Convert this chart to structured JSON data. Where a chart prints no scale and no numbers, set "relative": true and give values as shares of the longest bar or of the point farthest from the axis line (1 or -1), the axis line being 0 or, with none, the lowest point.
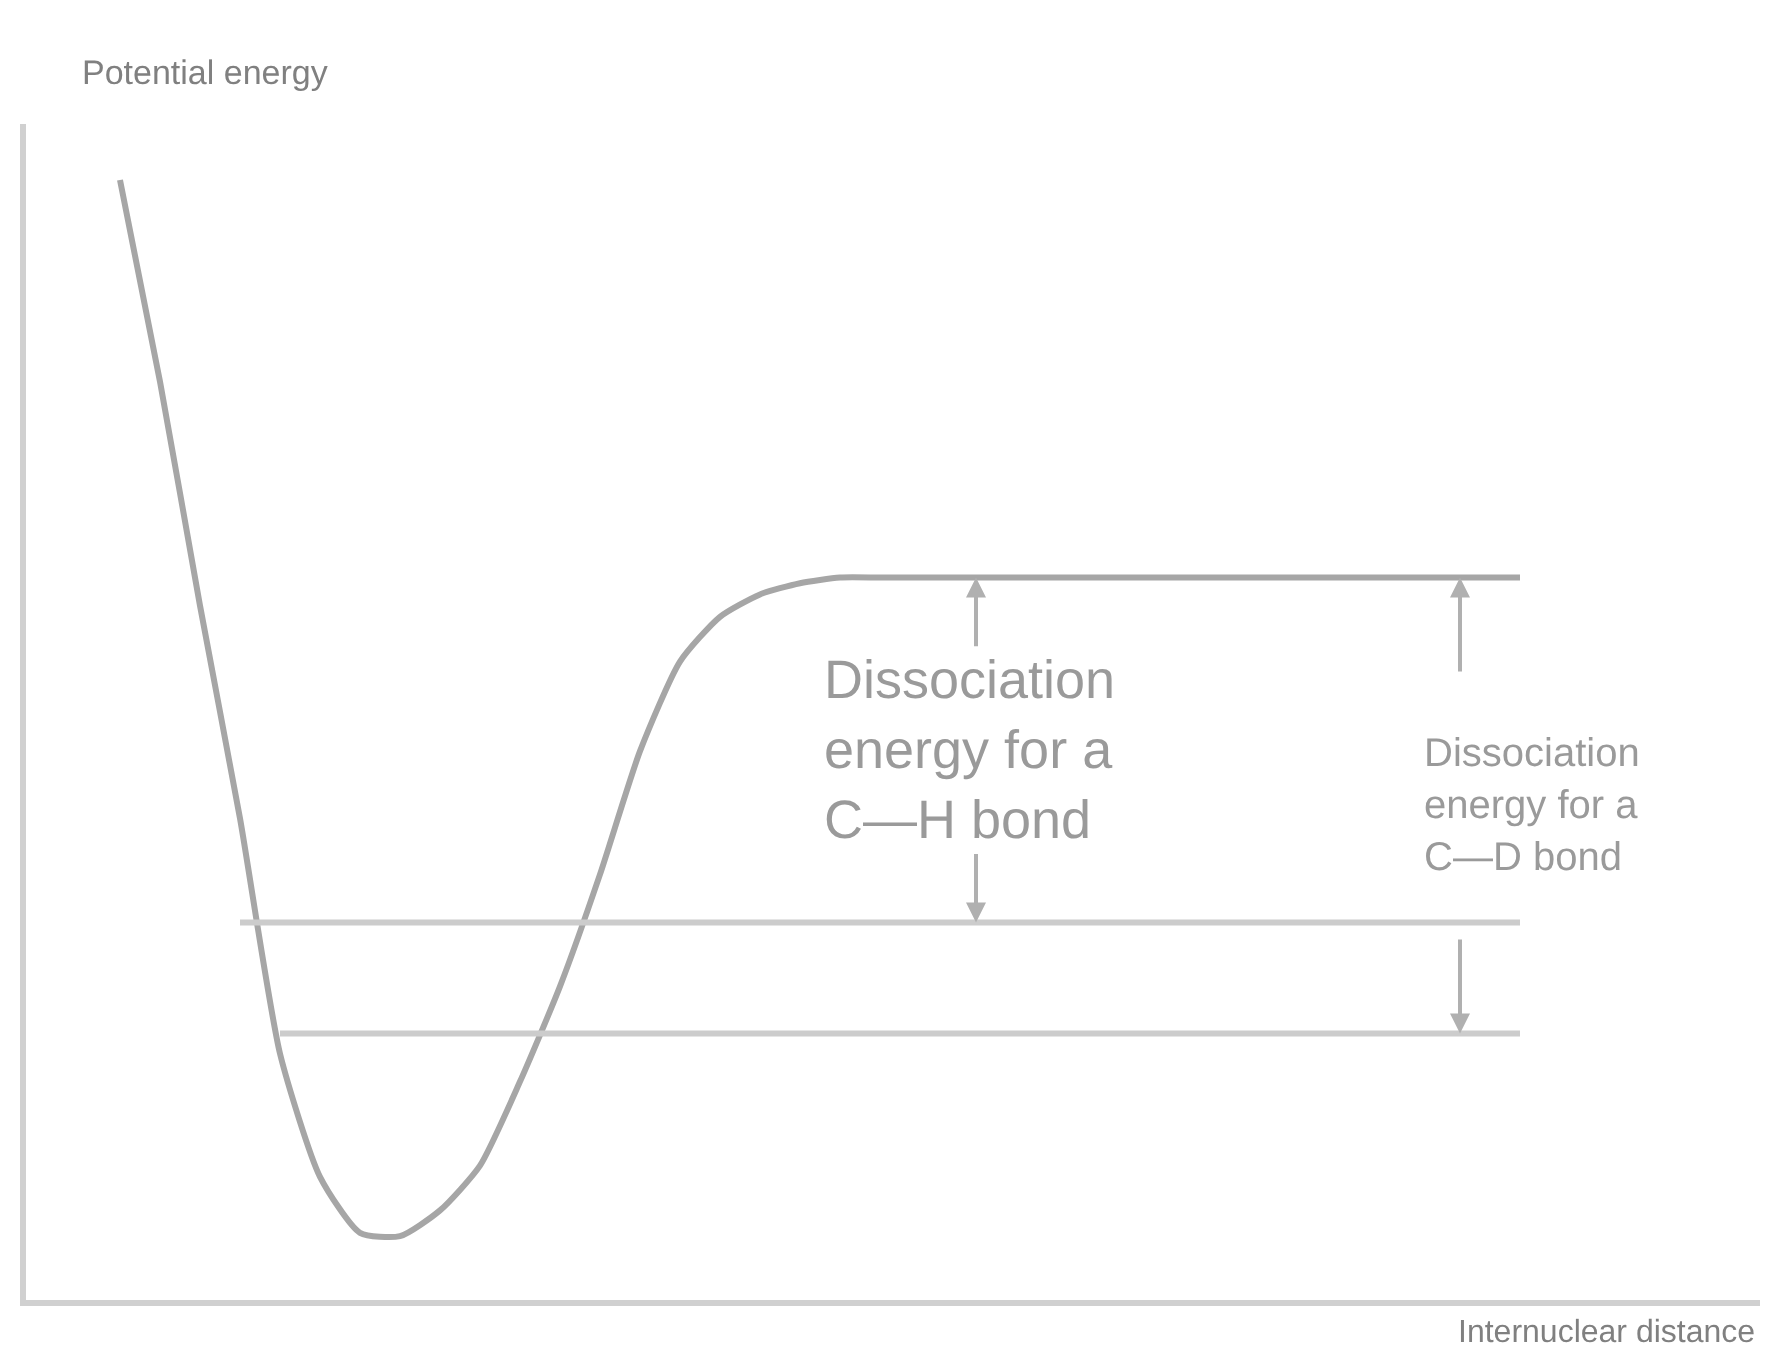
{
  "chart_data": {
    "type": "line",
    "relative": true,
    "xlabel": "Internuclear distance",
    "ylabel": "Potential energy",
    "categories": [
      null,
      null,
      null,
      null,
      null,
      null,
      null,
      null,
      null,
      null,
      null,
      null,
      null,
      null,
      null,
      null,
      null,
      null,
      null,
      null,
      null,
      null,
      null,
      null,
      null,
      null,
      null,
      null,
      null,
      null,
      null,
      null,
      null,
      null,
      null,
      null
    ],
    "series": [
      {
        "color": "#a6a6a6",
        "values": [
          1.0,
          0.82,
          0.62,
          0.43,
          0.22,
          0.11,
          0.06,
          0.057,
          0.08,
          0.12,
          0.195,
          0.28,
          0.38,
          0.49,
          0.57,
          0.61,
          0.63,
          0.64,
          0.645,
          0.645,
          0.645,
          0.645,
          0.645,
          0.645,
          0.645,
          0.645,
          0.645,
          0.645,
          0.645,
          0.645,
          0.645,
          0.645,
          0.645,
          0.645,
          0.645,
          0.645
        ]
      },
      {
        "color": "#cccccc",
        "values": [
          null,
          null,
          null,
          0.337,
          0.337,
          0.337,
          0.337,
          0.337,
          0.337,
          0.337,
          0.337,
          0.337,
          0.337,
          0.337,
          0.337,
          0.337,
          0.337,
          0.337,
          0.337,
          0.337,
          0.337,
          0.337,
          0.337,
          0.337,
          0.337,
          0.337,
          0.337,
          0.337,
          0.337,
          0.337,
          0.337,
          0.337,
          0.337,
          0.337,
          0.337,
          0.337
        ]
      },
      {
        "color": "#cccccc",
        "values": [
          null,
          null,
          null,
          null,
          0.238,
          0.238,
          0.238,
          0.238,
          0.238,
          0.238,
          0.238,
          0.238,
          0.238,
          0.238,
          0.238,
          0.238,
          0.238,
          0.238,
          0.238,
          0.238,
          0.238,
          0.238,
          0.238,
          0.238,
          0.238,
          0.238,
          0.238,
          0.238,
          0.238,
          0.238,
          0.238,
          0.238,
          0.238,
          0.238,
          0.238,
          0.238
        ]
      }
    ],
    "annotations": [
      "Dissociation energy for a C—H bond",
      "Dissociation energy for a C—D bond"
    ]
  }
}
